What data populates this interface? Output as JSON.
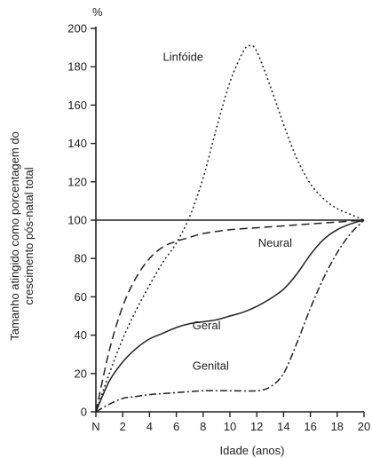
{
  "chart_data": {
    "type": "line",
    "unit": "%",
    "ylabel_line1": "Tamanho atingido como porcentagem do",
    "ylabel_line2": "crescimento pós-natal total",
    "xlabel": "Idade (anos)",
    "xlim": [
      0,
      20
    ],
    "ylim": [
      0,
      200
    ],
    "x_ticks": [
      0,
      2,
      4,
      6,
      8,
      10,
      12,
      14,
      16,
      18,
      20
    ],
    "x_tick_labels": [
      "N",
      "2",
      "4",
      "6",
      "8",
      "10",
      "12",
      "14",
      "16",
      "18",
      "20"
    ],
    "y_ticks": [
      0,
      20,
      40,
      60,
      80,
      100,
      120,
      140,
      160,
      180,
      200
    ],
    "y_tick_labels": [
      "0",
      "20",
      "40",
      "60",
      "80",
      "100",
      "120",
      "140",
      "160",
      "180",
      "200"
    ],
    "reference_line": 100,
    "series": [
      {
        "name": "Linfóide",
        "style": "dotted",
        "x": [
          0,
          1,
          2,
          3,
          4,
          5,
          6,
          7,
          8,
          9,
          10,
          11,
          11.5,
          12,
          13,
          14,
          15,
          16,
          17,
          18,
          19,
          20
        ],
        "y": [
          0,
          20,
          38,
          53,
          66,
          78,
          88,
          102,
          122,
          148,
          172,
          188,
          191,
          188,
          170,
          150,
          132,
          119,
          111,
          106,
          103,
          100
        ]
      },
      {
        "name": "Neural",
        "style": "dashed",
        "x": [
          0,
          1,
          2,
          3,
          4,
          5,
          6,
          7,
          8,
          10,
          12,
          14,
          16,
          18,
          20
        ],
        "y": [
          0,
          32,
          55,
          70,
          80,
          86,
          89,
          91,
          93,
          95,
          96,
          97,
          98,
          99,
          100
        ]
      },
      {
        "name": "Geral",
        "style": "solid",
        "x": [
          0,
          1,
          2,
          3,
          4,
          5,
          6,
          7,
          8,
          9,
          10,
          11,
          12,
          13,
          14,
          15,
          16,
          17,
          18,
          19,
          20
        ],
        "y": [
          0,
          16,
          26,
          33,
          38,
          41,
          44,
          46,
          47,
          48,
          50,
          52,
          55,
          59,
          64,
          72,
          82,
          90,
          95,
          98,
          100
        ]
      },
      {
        "name": "Genital",
        "style": "dash-dot",
        "x": [
          0,
          1,
          2,
          3,
          4,
          6,
          8,
          10,
          12,
          13,
          14,
          15,
          16,
          17,
          18,
          19,
          20
        ],
        "y": [
          0,
          4,
          7,
          8,
          9,
          10,
          11,
          11,
          11,
          13,
          20,
          36,
          54,
          70,
          83,
          93,
          100
        ]
      }
    ]
  }
}
